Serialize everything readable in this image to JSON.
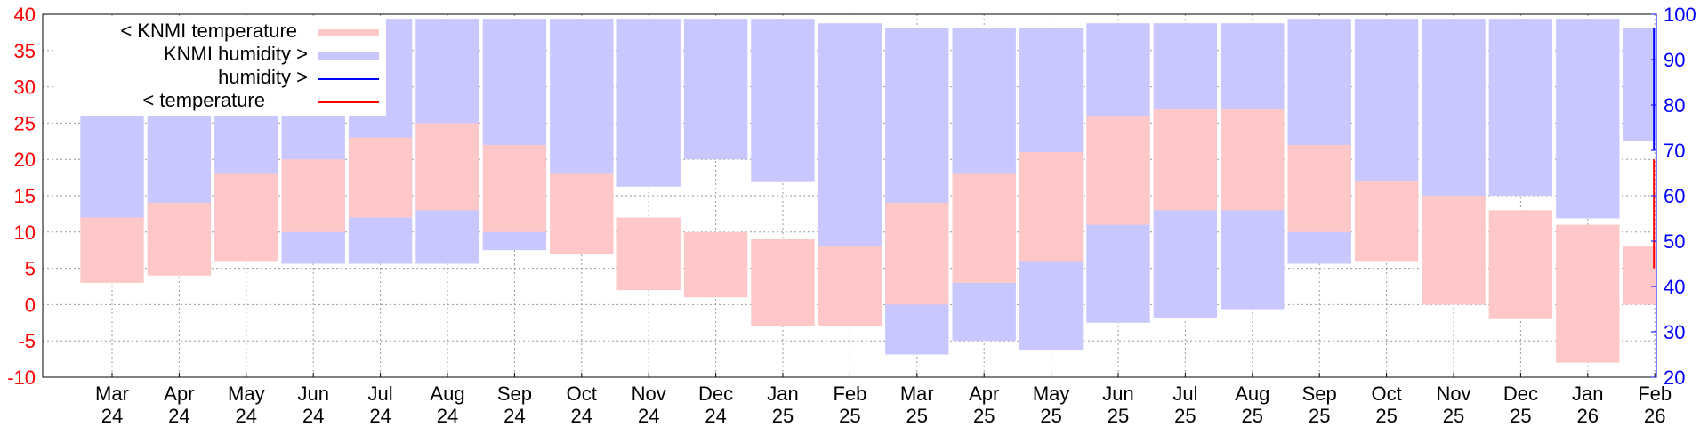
{
  "chart_data": {
    "type": "bar",
    "y_left": {
      "ylim": [
        -10,
        40
      ],
      "ticks": [
        "-10",
        "-5",
        "0",
        "5",
        "10",
        "15",
        "20",
        "25",
        "30",
        "35",
        "40"
      ]
    },
    "y_right": {
      "ylim": [
        20,
        100
      ],
      "ticks": [
        "20",
        "30",
        "40",
        "50",
        "60",
        "70",
        "80",
        "90",
        "100"
      ]
    },
    "x_ticks": [
      {
        "month": "Mar",
        "year": "24"
      },
      {
        "month": "Apr",
        "year": "24"
      },
      {
        "month": "May",
        "year": "24"
      },
      {
        "month": "Jun",
        "year": "24"
      },
      {
        "month": "Jul",
        "year": "24"
      },
      {
        "month": "Aug",
        "year": "24"
      },
      {
        "month": "Sep",
        "year": "24"
      },
      {
        "month": "Oct",
        "year": "24"
      },
      {
        "month": "Nov",
        "year": "24"
      },
      {
        "month": "Dec",
        "year": "24"
      },
      {
        "month": "Jan",
        "year": "25"
      },
      {
        "month": "Feb",
        "year": "25"
      },
      {
        "month": "Mar",
        "year": "25"
      },
      {
        "month": "Apr",
        "year": "25"
      },
      {
        "month": "May",
        "year": "25"
      },
      {
        "month": "Jun",
        "year": "25"
      },
      {
        "month": "Jul",
        "year": "25"
      },
      {
        "month": "Aug",
        "year": "25"
      },
      {
        "month": "Sep",
        "year": "25"
      },
      {
        "month": "Oct",
        "year": "25"
      },
      {
        "month": "Nov",
        "year": "25"
      },
      {
        "month": "Dec",
        "year": "25"
      },
      {
        "month": "Jan",
        "year": "26"
      },
      {
        "month": "Feb",
        "year": "26"
      }
    ],
    "grid": true,
    "legend_position": "top-left",
    "legend": [
      {
        "label": "< KNMI temperature",
        "color": "#ffc8c8"
      },
      {
        "label": "KNMI humidity >",
        "color": "#c8c8ff"
      },
      {
        "label": "humidity >",
        "color": "#0000ff"
      },
      {
        "label": "< temperature",
        "color": "#ff0000"
      }
    ],
    "series": [
      {
        "name": "KNMI humidity",
        "axis": "right",
        "color": "#c8c8ff",
        "values": [
          {
            "x": "Mar 24",
            "low": 55,
            "high": 98
          },
          {
            "x": "Apr 24",
            "low": 50,
            "high": 97
          },
          {
            "x": "May 24",
            "low": 48,
            "high": 98
          },
          {
            "x": "Jun 24",
            "low": 45,
            "high": 98
          },
          {
            "x": "Jul 24",
            "low": 45,
            "high": 99
          },
          {
            "x": "Aug 24",
            "low": 45,
            "high": 99
          },
          {
            "x": "Sep 24",
            "low": 48,
            "high": 99
          },
          {
            "x": "Oct 24",
            "low": 55,
            "high": 99
          },
          {
            "x": "Nov 24",
            "low": 62,
            "high": 99
          },
          {
            "x": "Dec 24",
            "low": 68,
            "high": 99
          },
          {
            "x": "Jan 25",
            "low": 63,
            "high": 99
          },
          {
            "x": "Feb 25",
            "low": 45,
            "high": 98
          },
          {
            "x": "Mar 25",
            "low": 25,
            "high": 97
          },
          {
            "x": "Apr 25",
            "low": 28,
            "high": 97
          },
          {
            "x": "May 25",
            "low": 26,
            "high": 97
          },
          {
            "x": "Jun 25",
            "low": 32,
            "high": 98
          },
          {
            "x": "Jul 25",
            "low": 33,
            "high": 98
          },
          {
            "x": "Aug 25",
            "low": 35,
            "high": 98
          },
          {
            "x": "Sep 25",
            "low": 45,
            "high": 99
          },
          {
            "x": "Oct 25",
            "low": 52,
            "high": 99
          },
          {
            "x": "Nov 25",
            "low": 58,
            "high": 99
          },
          {
            "x": "Dec 25",
            "low": 60,
            "high": 99
          },
          {
            "x": "Jan 26",
            "low": 55,
            "high": 99
          },
          {
            "x": "Feb 26",
            "low": 72,
            "high": 97
          }
        ]
      },
      {
        "name": "KNMI temperature",
        "axis": "left",
        "color": "#ffc8c8",
        "values": [
          {
            "x": "Mar 24",
            "low": 3,
            "high": 12
          },
          {
            "x": "Apr 24",
            "low": 4,
            "high": 14
          },
          {
            "x": "May 24",
            "low": 6,
            "high": 18
          },
          {
            "x": "Jun 24",
            "low": 10,
            "high": 20
          },
          {
            "x": "Jul 24",
            "low": 12,
            "high": 23
          },
          {
            "x": "Aug 24",
            "low": 13,
            "high": 25
          },
          {
            "x": "Sep 24",
            "low": 10,
            "high": 22
          },
          {
            "x": "Oct 24",
            "low": 7,
            "high": 18
          },
          {
            "x": "Nov 24",
            "low": 2,
            "high": 12
          },
          {
            "x": "Dec 24",
            "low": 1,
            "high": 10
          },
          {
            "x": "Jan 25",
            "low": -3,
            "high": 9
          },
          {
            "x": "Feb 25",
            "low": -3,
            "high": 8
          },
          {
            "x": "Mar 25",
            "low": 0,
            "high": 14
          },
          {
            "x": "Apr 25",
            "low": 3,
            "high": 18
          },
          {
            "x": "May 25",
            "low": 6,
            "high": 21
          },
          {
            "x": "Jun 25",
            "low": 11,
            "high": 26
          },
          {
            "x": "Jul 25",
            "low": 13,
            "high": 27
          },
          {
            "x": "Aug 25",
            "low": 13,
            "high": 27
          },
          {
            "x": "Sep 25",
            "low": 10,
            "high": 22
          },
          {
            "x": "Oct 25",
            "low": 6,
            "high": 17
          },
          {
            "x": "Nov 25",
            "low": 0,
            "high": 15
          },
          {
            "x": "Dec 25",
            "low": -2,
            "high": 13
          },
          {
            "x": "Jan 26",
            "low": -8,
            "high": 11
          },
          {
            "x": "Feb 26",
            "low": 0,
            "high": 8
          }
        ]
      },
      {
        "name": "humidity",
        "axis": "right",
        "color": "#0000ff",
        "values": [
          {
            "x": "Feb 26",
            "low": 70,
            "high": 97
          }
        ]
      },
      {
        "name": "temperature",
        "axis": "left",
        "color": "#ff0000",
        "values": [
          {
            "x": "Feb 26",
            "low": 5,
            "high": 20
          }
        ]
      }
    ]
  }
}
